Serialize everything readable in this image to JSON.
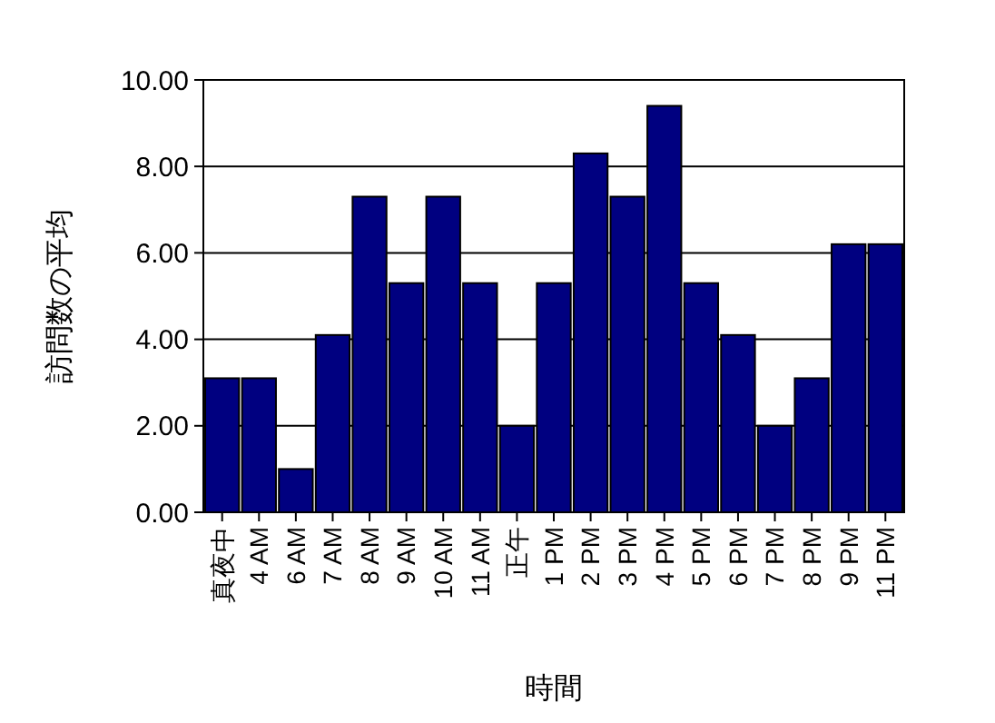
{
  "chart_data": {
    "type": "bar",
    "xlabel": "時間",
    "ylabel": "訪問数の平均",
    "categories": [
      "真夜中",
      "4 AM",
      "6 AM",
      "7 AM",
      "8 AM",
      "9 AM",
      "10 AM",
      "11 AM",
      "正午",
      "1 PM",
      "2 PM",
      "3 PM",
      "4 PM",
      "5 PM",
      "6 PM",
      "7 PM",
      "8 PM",
      "9 PM",
      "11 PM"
    ],
    "values": [
      3.1,
      3.1,
      1.0,
      4.1,
      7.3,
      5.3,
      7.3,
      5.3,
      2.0,
      5.3,
      8.3,
      7.3,
      9.4,
      5.3,
      4.1,
      2.0,
      3.1,
      6.2,
      6.2
    ],
    "color": "#000080",
    "ylim": [
      0,
      10
    ],
    "yticks": [
      {
        "value": 0,
        "label": "0.00"
      },
      {
        "value": 2,
        "label": "2.00"
      },
      {
        "value": 4,
        "label": "4.00"
      },
      {
        "value": 6,
        "label": "6.00"
      },
      {
        "value": 8,
        "label": "8.00"
      },
      {
        "value": 10,
        "label": "10.00"
      }
    ],
    "grid": true
  }
}
